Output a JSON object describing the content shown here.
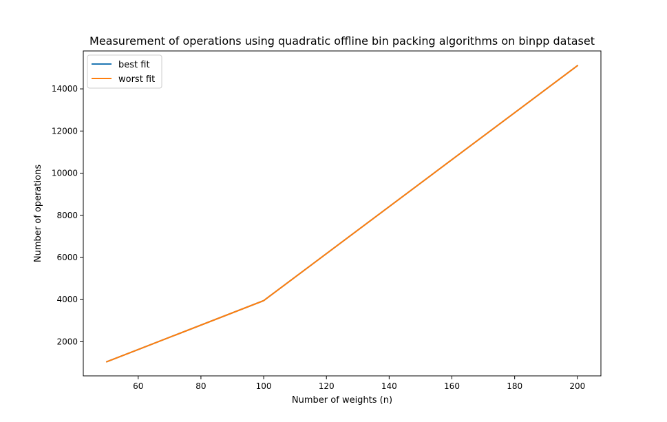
{
  "chart_data": {
    "type": "line",
    "title": "Measurement of operations using quadratic offline bin packing algorithms on binpp dataset",
    "xlabel": "Number of weights (n)",
    "ylabel": "Number of operations",
    "x": [
      50,
      100,
      200
    ],
    "xlim": [
      42.5,
      207.5
    ],
    "ylim": [
      380,
      15800
    ],
    "xticks": [
      60,
      80,
      100,
      120,
      140,
      160,
      180,
      200
    ],
    "yticks": [
      2000,
      4000,
      6000,
      8000,
      10000,
      12000,
      14000
    ],
    "grid": false,
    "legend_position": "top-left",
    "series": [
      {
        "name": "best fit",
        "color": "#1f77b4",
        "values": [
          1050,
          3950,
          15100
        ]
      },
      {
        "name": "worst fit",
        "color": "#ff7f0e",
        "values": [
          1050,
          3950,
          15100
        ]
      }
    ]
  }
}
